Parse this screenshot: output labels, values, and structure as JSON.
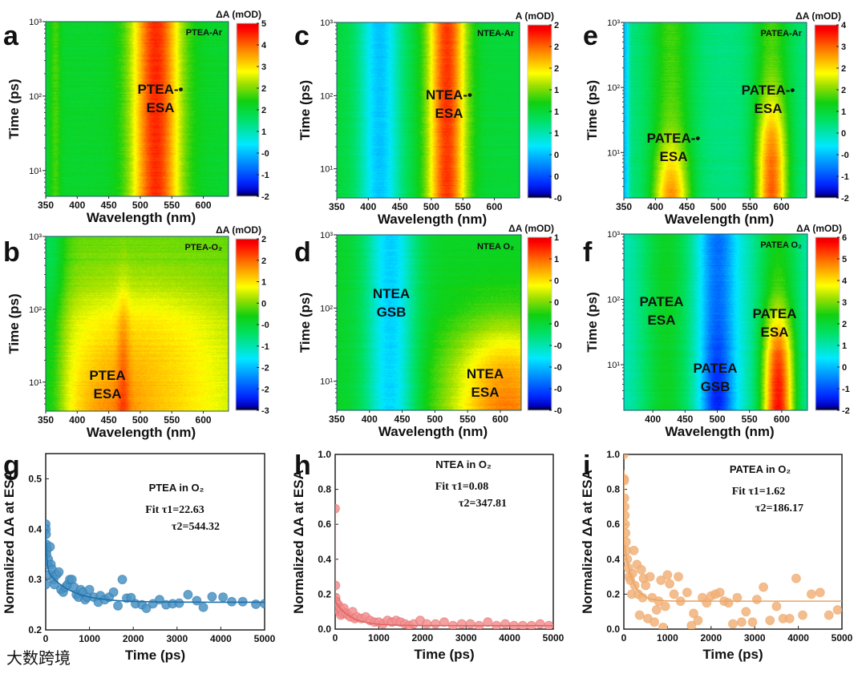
{
  "watermark": "大数跨境",
  "common": {
    "wavelength_label": "Wavelength (nm)",
    "time_label": "Time (ps)",
    "norm_label": "Normalized ΔA at ESA",
    "log_ticks": [
      "10¹",
      "10²",
      "10³"
    ]
  },
  "chart_data": [
    {
      "panel": "a",
      "type": "heatmap",
      "title": "PTEA-Ar",
      "xlabel": "Wavelength (nm)",
      "ylabel": "Time (ps)",
      "xlim": [
        350,
        640
      ],
      "ylim": [
        4.5,
        1000
      ],
      "yscale": "log",
      "xticks": [
        350,
        400,
        450,
        500,
        550,
        600
      ],
      "colorbar_title": "ΔA (mOD)",
      "crange": [
        -2,
        5.2
      ],
      "cticks": [
        "-2",
        "-1",
        "-0",
        "1",
        "2",
        "2",
        "3",
        "4",
        "5"
      ],
      "base": 1.7,
      "features": [
        {
          "wl": 525,
          "sigma": 28,
          "amp": 3.0
        },
        {
          "wl": 365,
          "sigma": 6,
          "amp": 0.5
        }
      ],
      "annotations": [
        [
          "PTEA-•",
          "ESA"
        ]
      ]
    },
    {
      "panel": "b",
      "type": "heatmap",
      "title": "PTEA-O₂",
      "xlabel": "Wavelength (nm)",
      "ylabel": "Time (ps)",
      "xlim": [
        350,
        640
      ],
      "ylim": [
        4,
        1000
      ],
      "yscale": "log",
      "xticks": [
        350,
        400,
        450,
        500,
        550,
        600
      ],
      "colorbar_title": "ΔA (mOD)",
      "crange": [
        -3,
        2
      ],
      "cticks": [
        "-3",
        "-2",
        "-2",
        "-1",
        "-0",
        "0",
        "1",
        "2",
        "2"
      ],
      "base": 0.0,
      "features": [
        {
          "wl": 500,
          "sigma": 120,
          "amp": 0.9,
          "t_fade": 150
        },
        {
          "wl": 450,
          "sigma": 40,
          "amp": 0.45,
          "t_fade": 12
        },
        {
          "wl": 473,
          "sigma": 7,
          "amp": 0.4,
          "t_fade": 160
        },
        {
          "wl": 355,
          "sigma": 18,
          "amp": -0.7
        }
      ],
      "annotations": [
        [
          "PTEA",
          "ESA"
        ]
      ]
    },
    {
      "panel": "c",
      "type": "heatmap",
      "title": "NTEA-Ar",
      "xlabel": "Wavelength (nm)",
      "ylabel": "Time (ps)",
      "xlim": [
        350,
        640
      ],
      "ylim": [
        4,
        1000
      ],
      "yscale": "log",
      "xticks": [
        350,
        400,
        450,
        500,
        550,
        600
      ],
      "colorbar_title": "A (mOD)",
      "crange": [
        -0.2,
        2.3
      ],
      "cticks": [
        "-0",
        "0",
        "0",
        "1",
        "1",
        "1",
        "2",
        "2",
        "2"
      ],
      "base": 1.05,
      "features": [
        {
          "wl": 418,
          "sigma": 24,
          "amp": -0.6
        },
        {
          "wl": 525,
          "sigma": 22,
          "amp": 1.05
        }
      ],
      "annotations": [
        [
          "NTEA-•",
          "ESA"
        ]
      ]
    },
    {
      "panel": "d",
      "type": "heatmap",
      "title": "NTEA O₂",
      "xlabel": "Wavelength (nm)",
      "ylabel": "Time (ps)",
      "xlim": [
        350,
        632
      ],
      "ylim": [
        4,
        1000
      ],
      "yscale": "log",
      "xticks": [
        350,
        400,
        450,
        500,
        550,
        600
      ],
      "colorbar_title": "ΔA (mOD)",
      "crange": [
        -1,
        1.2
      ],
      "cticks": [
        "-0",
        "-0",
        "-0",
        "-0",
        "0",
        "0",
        "0",
        "1",
        "1"
      ],
      "base": 0.15,
      "features": [
        {
          "wl": 432,
          "sigma": 28,
          "amp": -0.55
        },
        {
          "wl": 610,
          "sigma": 65,
          "amp": 0.75,
          "t_fade": 40
        }
      ],
      "annotations": [
        [
          "NTEA",
          "GSB"
        ],
        [
          "NTEA",
          "ESA"
        ]
      ]
    },
    {
      "panel": "e",
      "type": "heatmap",
      "title": "PATEA-Ar",
      "xlabel": "Wavelength (nm)",
      "ylabel": "Time (ps)",
      "xlim": [
        350,
        640
      ],
      "ylim": [
        2,
        1000
      ],
      "yscale": "log",
      "xticks": [
        350,
        400,
        450,
        500,
        550,
        600
      ],
      "colorbar_title": "ΔA (mOD)",
      "crange": [
        -2,
        4.2
      ],
      "cticks": [
        "-2",
        "-1",
        "-0",
        "0",
        "1",
        "2",
        "2",
        "3",
        "4"
      ],
      "base": 0.6,
      "features": [
        {
          "wl": 425,
          "sigma": 25,
          "amp": 1.0
        },
        {
          "wl": 425,
          "sigma": 20,
          "amp": 1.8,
          "t_fade": 8
        },
        {
          "wl": 585,
          "sigma": 22,
          "amp": 1.0
        },
        {
          "wl": 585,
          "sigma": 17,
          "amp": 1.9,
          "t_fade": 40
        },
        {
          "wl": 352,
          "sigma": 4,
          "amp": -1.0
        }
      ],
      "annotations": [
        [
          "PATEA-•",
          "ESA"
        ],
        [
          "PATEA-•",
          "ESA"
        ]
      ]
    },
    {
      "panel": "f",
      "type": "heatmap",
      "title": "PATEA O₂",
      "xlabel": "Wavelength (nm)",
      "ylabel": "Time (ps)",
      "xlim": [
        355,
        640
      ],
      "ylim": [
        2,
        1000
      ],
      "yscale": "log",
      "xticks": [
        400,
        450,
        500,
        550,
        600
      ],
      "colorbar_title": "ΔA (mOD)",
      "crange": [
        -2,
        6.2
      ],
      "cticks": [
        "-2",
        "-1",
        "0",
        "1",
        "2",
        "3",
        "4",
        "5",
        "6"
      ],
      "base": 0.9,
      "features": [
        {
          "wl": 420,
          "sigma": 30,
          "amp": 1.4
        },
        {
          "wl": 500,
          "sigma": 20,
          "amp": -1.6
        },
        {
          "wl": 500,
          "sigma": 15,
          "amp": -0.8,
          "t_fade": 15
        },
        {
          "wl": 595,
          "sigma": 25,
          "amp": 1.5
        },
        {
          "wl": 595,
          "sigma": 17,
          "amp": 3.5,
          "t_fade": 40
        }
      ],
      "annotations": [
        [
          "PATEA",
          "ESA"
        ],
        [
          "PATEA",
          "GSB"
        ],
        [
          "PATEA",
          "ESA"
        ]
      ]
    },
    {
      "panel": "g",
      "type": "scatter",
      "xlabel": "Time (ps)",
      "ylabel": "Normalized ΔA at ESA",
      "xlim": [
        0,
        5000
      ],
      "ylim": [
        0.2,
        0.55
      ],
      "xticks": [
        0,
        1000,
        2000,
        3000,
        4000,
        5000
      ],
      "yticks": [
        "0.2",
        "0.3",
        "0.4",
        "0.5"
      ],
      "color": "#4a93c4",
      "line_color": "#1f6ea6",
      "legend": "PTEA in O₂",
      "fit_label": "Fit τ1=22.63",
      "fit_label2": "τ2=544.32",
      "fit": {
        "offset": 0.255,
        "a1": 0.08,
        "tau1": 22.63,
        "a2": 0.065,
        "tau2": 544.32
      },
      "points": [
        [
          0,
          0.41
        ],
        [
          5,
          0.4
        ],
        [
          10,
          0.39
        ],
        [
          15,
          0.37
        ],
        [
          20,
          0.35
        ],
        [
          0,
          0.29
        ],
        [
          30,
          0.36
        ],
        [
          50,
          0.33
        ],
        [
          60,
          0.34
        ],
        [
          80,
          0.31
        ],
        [
          100,
          0.365
        ],
        [
          120,
          0.33
        ],
        [
          150,
          0.32
        ],
        [
          180,
          0.3
        ],
        [
          200,
          0.29
        ],
        [
          250,
          0.31
        ],
        [
          300,
          0.315
        ],
        [
          350,
          0.28
        ],
        [
          400,
          0.275
        ],
        [
          450,
          0.285
        ],
        [
          500,
          0.29
        ],
        [
          550,
          0.3
        ],
        [
          600,
          0.3
        ],
        [
          650,
          0.285
        ],
        [
          700,
          0.27
        ],
        [
          750,
          0.265
        ],
        [
          800,
          0.28
        ],
        [
          850,
          0.275
        ],
        [
          900,
          0.26
        ],
        [
          950,
          0.265
        ],
        [
          1000,
          0.28
        ],
        [
          1100,
          0.265
        ],
        [
          1200,
          0.255
        ],
        [
          1250,
          0.268
        ],
        [
          1350,
          0.26
        ],
        [
          1450,
          0.265
        ],
        [
          1550,
          0.275
        ],
        [
          1650,
          0.248
        ],
        [
          1750,
          0.3
        ],
        [
          1850,
          0.263
        ],
        [
          1950,
          0.264
        ],
        [
          2050,
          0.252
        ],
        [
          2200,
          0.25
        ],
        [
          2300,
          0.243
        ],
        [
          2450,
          0.252
        ],
        [
          2600,
          0.26
        ],
        [
          2750,
          0.25
        ],
        [
          2900,
          0.252
        ],
        [
          3050,
          0.253
        ],
        [
          3250,
          0.27
        ],
        [
          3450,
          0.258
        ],
        [
          3600,
          0.245
        ],
        [
          3800,
          0.266
        ],
        [
          4050,
          0.265
        ],
        [
          4250,
          0.256
        ],
        [
          4500,
          0.256
        ],
        [
          4800,
          0.251
        ],
        [
          5000,
          0.252
        ]
      ]
    },
    {
      "panel": "h",
      "type": "scatter",
      "xlabel": "Time (ps)",
      "ylabel": "Normalized ΔA at ESA",
      "xlim": [
        0,
        5000
      ],
      "ylim": [
        0,
        1
      ],
      "xticks": [
        0,
        1000,
        2000,
        3000,
        4000,
        5000
      ],
      "yticks": [
        "0.0",
        "0.2",
        "0.4",
        "0.6",
        "0.8",
        "1.0"
      ],
      "color": "#f29090",
      "line_color": "#e06565",
      "legend": "NTEA in O₂",
      "fit_label": "Fit τ1=0.08",
      "fit_label2": "τ2=347.81",
      "fit": {
        "offset": 0.02,
        "a1": 0.55,
        "tau1": 0.08,
        "a2": 0.14,
        "tau2": 347.81
      },
      "points": [
        [
          0,
          0.69
        ],
        [
          5,
          0.25
        ],
        [
          10,
          0.18
        ],
        [
          20,
          0.16
        ],
        [
          30,
          0.15
        ],
        [
          50,
          0.12
        ],
        [
          70,
          0.14
        ],
        [
          90,
          0.1
        ],
        [
          110,
          0.12
        ],
        [
          130,
          0.08
        ],
        [
          150,
          0.11
        ],
        [
          180,
          0.09
        ],
        [
          200,
          0.12
        ],
        [
          250,
          0.09
        ],
        [
          300,
          0.08
        ],
        [
          350,
          0.07
        ],
        [
          400,
          0.1
        ],
        [
          450,
          0.06
        ],
        [
          500,
          0.07
        ],
        [
          600,
          0.06
        ],
        [
          700,
          0.07
        ],
        [
          800,
          0.05
        ],
        [
          900,
          0.04
        ],
        [
          1000,
          0.04
        ],
        [
          1100,
          0.03
        ],
        [
          1200,
          0.05
        ],
        [
          1300,
          0.04
        ],
        [
          1400,
          0.05
        ],
        [
          1500,
          0.04
        ],
        [
          1600,
          0.03
        ],
        [
          1700,
          0.02
        ],
        [
          1800,
          0.03
        ],
        [
          1950,
          0.05
        ],
        [
          2100,
          0.03
        ],
        [
          2300,
          0.03
        ],
        [
          2500,
          0.04
        ],
        [
          2700,
          0.02
        ],
        [
          2900,
          0.03
        ],
        [
          3100,
          0.03
        ],
        [
          3300,
          0.02
        ],
        [
          3500,
          0.04
        ],
        [
          3700,
          0.02
        ],
        [
          3900,
          0.03
        ],
        [
          4100,
          0.02
        ],
        [
          4300,
          0.02
        ],
        [
          4500,
          0.02
        ],
        [
          4700,
          0.03
        ],
        [
          4900,
          0.02
        ]
      ]
    },
    {
      "panel": "i",
      "type": "scatter",
      "xlabel": "Time (ps)",
      "ylabel": "Normalized ΔA at ESA",
      "xlim": [
        0,
        5000
      ],
      "ylim": [
        0,
        1
      ],
      "xticks": [
        0,
        1000,
        2000,
        3000,
        4000,
        5000
      ],
      "yticks": [
        "0.0",
        "0.2",
        "0.4",
        "0.6",
        "0.8",
        "1.0"
      ],
      "color": "#f2b27a",
      "line_color": "#eaa565",
      "legend": "PATEA in O₂",
      "fit_label": "Fit τ1=1.62",
      "fit_label2": "τ2=186.17",
      "fit": {
        "offset": 0.16,
        "a1": 0.4,
        "tau1": 1.62,
        "a2": 0.35,
        "tau2": 186.17
      },
      "points": [
        [
          0,
          1.0
        ],
        [
          5,
          0.86
        ],
        [
          10,
          0.85
        ],
        [
          15,
          0.75
        ],
        [
          20,
          0.7
        ],
        [
          25,
          0.65
        ],
        [
          30,
          0.6
        ],
        [
          40,
          0.55
        ],
        [
          50,
          0.5
        ],
        [
          60,
          0.45
        ],
        [
          80,
          0.4
        ],
        [
          100,
          0.35
        ],
        [
          120,
          0.3
        ],
        [
          150,
          0.28
        ],
        [
          180,
          0.2
        ],
        [
          200,
          0.32
        ],
        [
          230,
          0.45
        ],
        [
          250,
          0.25
        ],
        [
          300,
          0.37
        ],
        [
          330,
          0.2
        ],
        [
          360,
          0.08
        ],
        [
          400,
          0.34
        ],
        [
          430,
          0.18
        ],
        [
          450,
          0.29
        ],
        [
          500,
          0.25
        ],
        [
          550,
          0.06
        ],
        [
          600,
          0.3
        ],
        [
          650,
          0.18
        ],
        [
          700,
          0.04
        ],
        [
          750,
          0.11
        ],
        [
          800,
          0.16
        ],
        [
          850,
          0.28
        ],
        [
          900,
          0.01
        ],
        [
          950,
          0.13
        ],
        [
          1000,
          0.31
        ],
        [
          1050,
          0.26
        ],
        [
          1150,
          0.2
        ],
        [
          1250,
          0.3
        ],
        [
          1300,
          0.16
        ],
        [
          1450,
          0.21
        ],
        [
          1550,
          0.02
        ],
        [
          1600,
          0.09
        ],
        [
          1700,
          0.05
        ],
        [
          1800,
          0.18
        ],
        [
          1900,
          0.15
        ],
        [
          2000,
          0.19
        ],
        [
          2100,
          0.2
        ],
        [
          2200,
          0.21
        ],
        [
          2300,
          0.16
        ],
        [
          2400,
          0.15
        ],
        [
          2500,
          0.03
        ],
        [
          2600,
          0.18
        ],
        [
          2700,
          0.04
        ],
        [
          2800,
          0.1
        ],
        [
          2950,
          0.04
        ],
        [
          3050,
          0.17
        ],
        [
          3200,
          0.24
        ],
        [
          3350,
          0.05
        ],
        [
          3500,
          0.13
        ],
        [
          3650,
          0.06
        ],
        [
          3800,
          0.06
        ],
        [
          3950,
          0.29
        ],
        [
          4100,
          0.08
        ],
        [
          4300,
          0.2
        ],
        [
          4500,
          0.21
        ],
        [
          4700,
          0.08
        ],
        [
          4900,
          0.11
        ]
      ]
    }
  ]
}
